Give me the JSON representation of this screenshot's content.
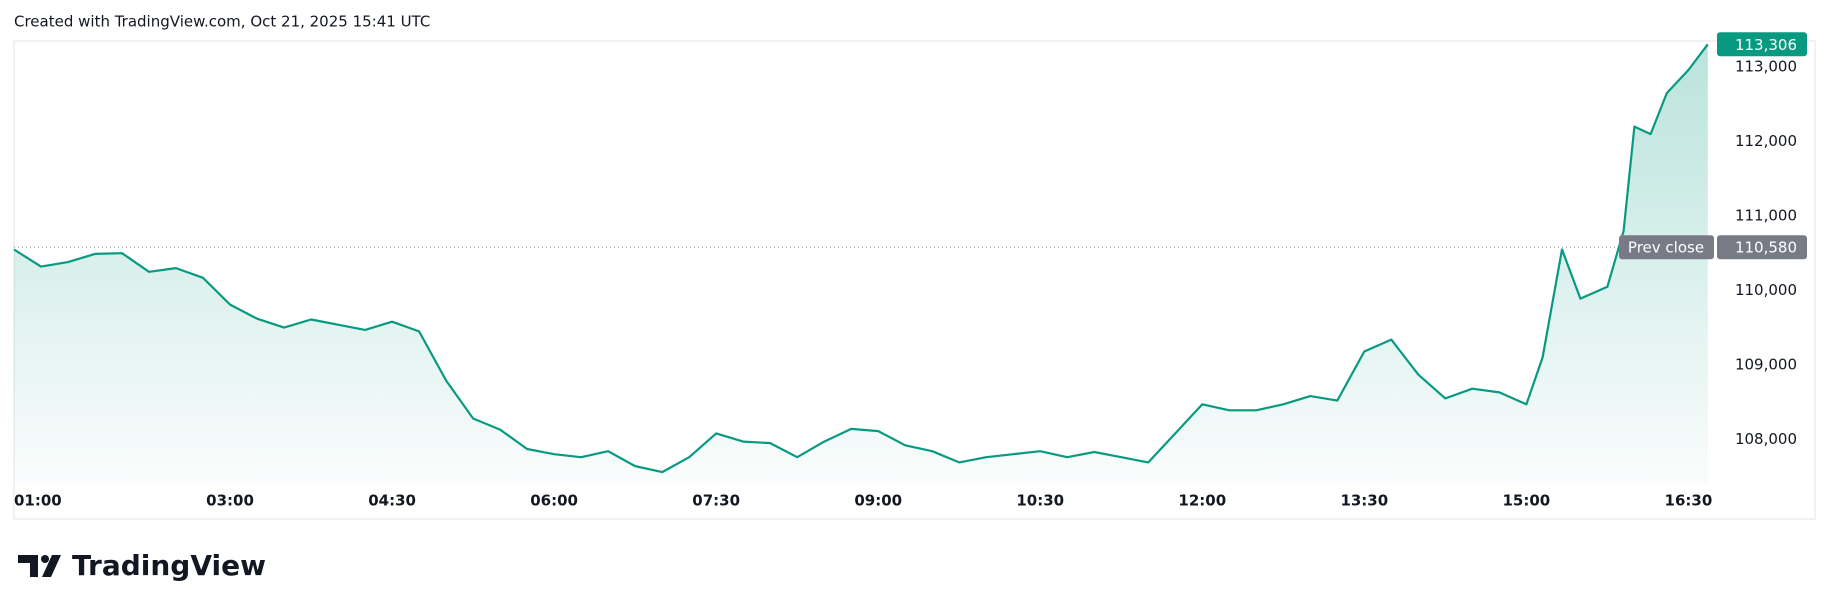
{
  "header": {
    "text": "Created with TradingView.com, Oct 21, 2025 15:41 UTC"
  },
  "chart_data": {
    "type": "area",
    "color": "#089981",
    "x": [
      1,
      1.25,
      1.5,
      1.75,
      2,
      2.25,
      2.5,
      2.75,
      3,
      3.25,
      3.5,
      3.75,
      4,
      4.25,
      4.5,
      4.75,
      5,
      5.25,
      5.5,
      5.75,
      6,
      6.25,
      6.5,
      6.75,
      7,
      7.25,
      7.5,
      7.75,
      8,
      8.25,
      8.5,
      8.75,
      9,
      9.25,
      9.5,
      9.75,
      10,
      10.25,
      10.5,
      10.75,
      11,
      11.25,
      11.5,
      11.75,
      12,
      12.25,
      12.5,
      12.75,
      13,
      13.25,
      13.5,
      13.75,
      14,
      14.25,
      14.5,
      14.75,
      15,
      15.15,
      15.33,
      15.5,
      15.75,
      15.9,
      16,
      16.15,
      16.3,
      16.5,
      16.68
    ],
    "values": [
      110550,
      110320,
      110380,
      110490,
      110500,
      110250,
      110300,
      110170,
      109810,
      109620,
      109500,
      109610,
      109540,
      109470,
      109580,
      109450,
      108790,
      108280,
      108130,
      107870,
      107800,
      107760,
      107840,
      107640,
      107560,
      107760,
      108080,
      107970,
      107950,
      107760,
      107970,
      108140,
      108110,
      107920,
      107840,
      107690,
      107760,
      107800,
      107840,
      107760,
      107830,
      107760,
      107690,
      108080,
      108470,
      108390,
      108390,
      108470,
      108580,
      108520,
      109180,
      109340,
      108870,
      108550,
      108680,
      108630,
      108470,
      109100,
      110550,
      109890,
      110050,
      110800,
      112200,
      112100,
      112650,
      112960,
      113306
    ],
    "xlim": [
      1,
      16.7
    ],
    "ylim": [
      107400,
      113350
    ],
    "xticks": [
      {
        "value": 1,
        "label": "01:00"
      },
      {
        "value": 3,
        "label": "03:00"
      },
      {
        "value": 4.5,
        "label": "04:30"
      },
      {
        "value": 6,
        "label": "06:00"
      },
      {
        "value": 7.5,
        "label": "07:30"
      },
      {
        "value": 9,
        "label": "09:00"
      },
      {
        "value": 10.5,
        "label": "10:30"
      },
      {
        "value": 12,
        "label": "12:00"
      },
      {
        "value": 13.5,
        "label": "13:30"
      },
      {
        "value": 15,
        "label": "15:00"
      },
      {
        "value": 16.5,
        "label": "16:30"
      }
    ],
    "yticks": [
      {
        "value": 108000,
        "label": "108,000"
      },
      {
        "value": 109000,
        "label": "109,000"
      },
      {
        "value": 110000,
        "label": "110,000"
      },
      {
        "value": 111000,
        "label": "111,000"
      },
      {
        "value": 112000,
        "label": "112,000"
      },
      {
        "value": 113000,
        "label": "113,000"
      }
    ],
    "prev_close": {
      "label": "Prev close",
      "value": 110580,
      "value_label": "110,580"
    },
    "last_price": {
      "value": 113306,
      "value_label": "113,306"
    }
  },
  "footer": {
    "logo_text": "TradingView"
  }
}
